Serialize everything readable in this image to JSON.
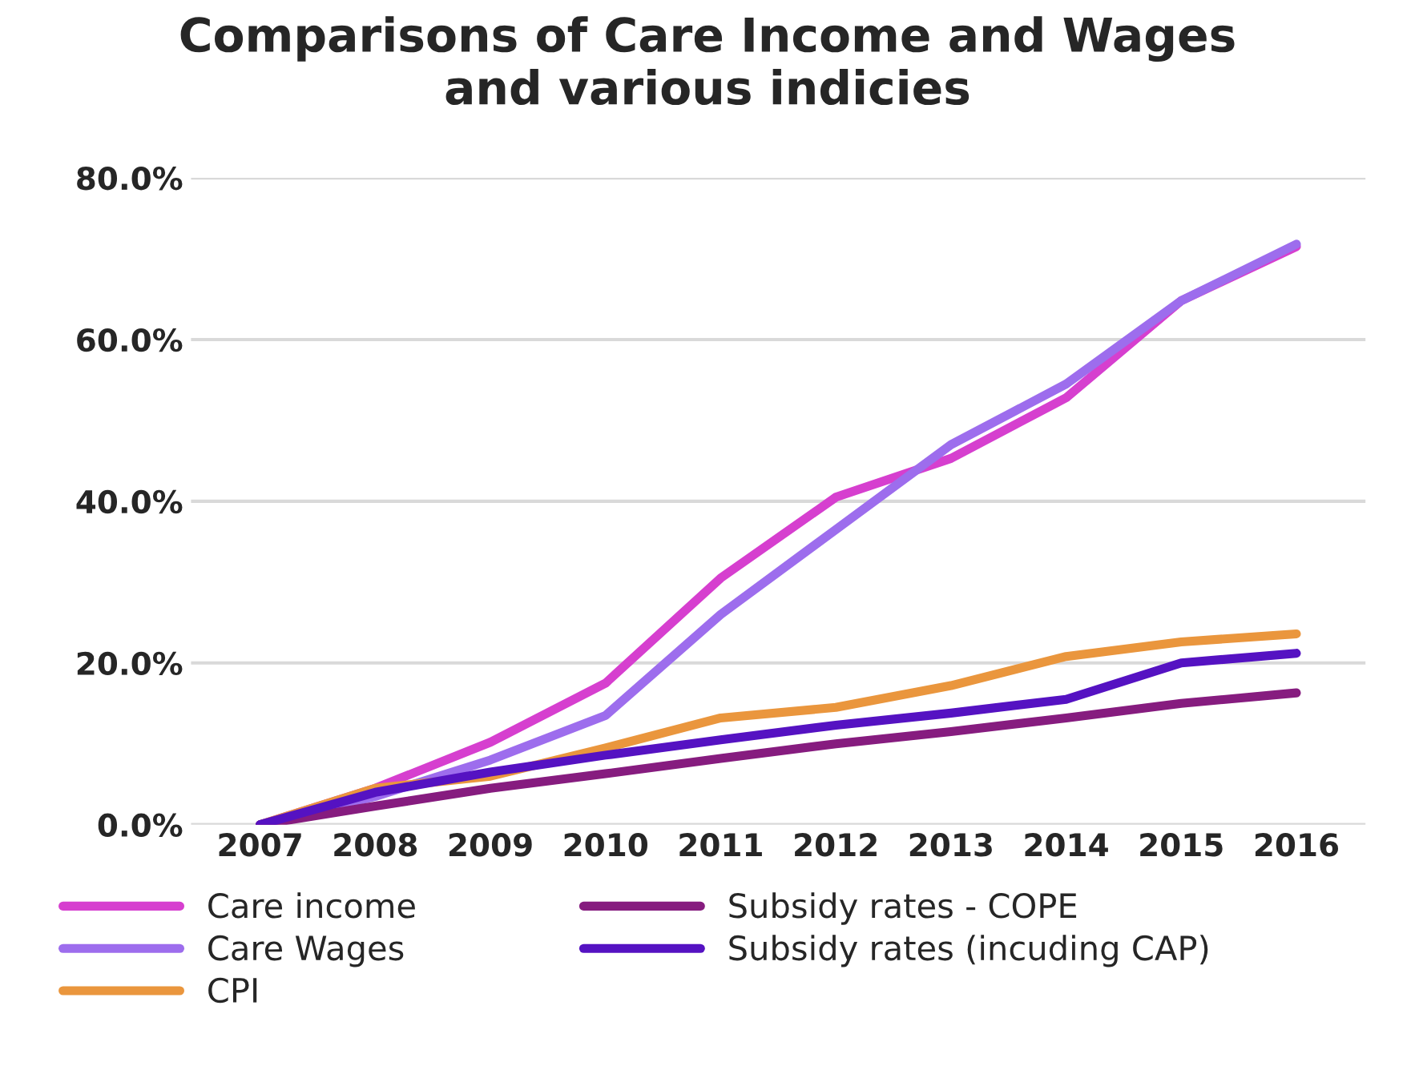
{
  "chart_data": {
    "type": "line",
    "title": "Comparisons of Care Income and Wages\nand various indicies",
    "categories": [
      "2007",
      "2008",
      "2009",
      "2010",
      "2011",
      "2012",
      "2013",
      "2014",
      "2015",
      "2016"
    ],
    "series": [
      {
        "name": "Care income",
        "color": "#d63fcf",
        "values": [
          0,
          4.5,
          10.2,
          17.5,
          30.5,
          40.5,
          45.3,
          52.8,
          64.8,
          71.5
        ]
      },
      {
        "name": "Care Wages",
        "color": "#9d6ded",
        "values": [
          0,
          3.5,
          8.0,
          13.5,
          26.0,
          36.5,
          47.0,
          54.5,
          64.8,
          71.8
        ]
      },
      {
        "name": "CPI",
        "color": "#ea963d",
        "values": [
          0,
          4.5,
          6.0,
          9.5,
          13.2,
          14.5,
          17.2,
          20.8,
          22.6,
          23.6
        ]
      },
      {
        "name": "Subsidy rates - COPE",
        "color": "#861c7f",
        "values": [
          0,
          2.3,
          4.5,
          6.3,
          8.2,
          10.0,
          11.5,
          13.2,
          15.0,
          16.3
        ]
      },
      {
        "name": "Subsidy rates (incuding CAP)",
        "color": "#5512c2",
        "values": [
          0,
          4.0,
          6.5,
          8.6,
          10.5,
          12.3,
          13.8,
          15.5,
          20.0,
          21.2
        ]
      }
    ],
    "ylim": [
      0,
      80
    ],
    "yticks": [
      {
        "value": 0,
        "label": "0.0%"
      },
      {
        "value": 20,
        "label": "20.0%"
      },
      {
        "value": 40,
        "label": "40.0%"
      },
      {
        "value": 60,
        "label": "60.0%"
      },
      {
        "value": 80,
        "label": "80.0%"
      }
    ],
    "grid": "y",
    "legend": "bottom",
    "line_style": "solid"
  }
}
